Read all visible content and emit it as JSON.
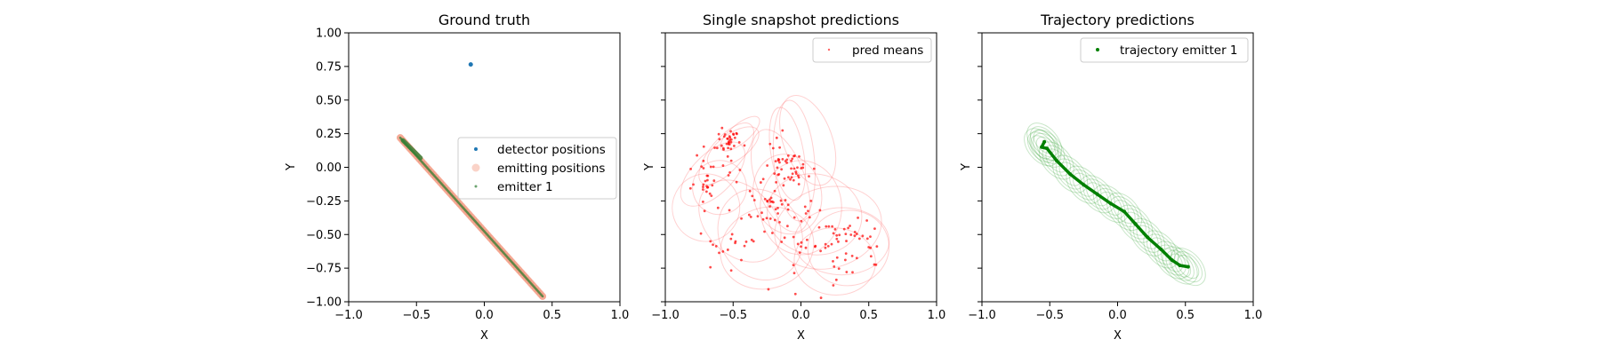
{
  "figure": {
    "background": "#ffffff"
  },
  "chart_data": [
    {
      "type": "scatter",
      "title": "Ground truth",
      "xlabel": "X",
      "ylabel": "Y",
      "xlim": [
        -1.0,
        1.0
      ],
      "ylim": [
        -1.0,
        1.0
      ],
      "xticks": [
        "−1.0",
        "−0.5",
        "0.0",
        "0.5",
        "1.0"
      ],
      "yticks": [
        "1.00",
        "0.75",
        "0.50",
        "0.25",
        "0.00",
        "−0.25",
        "−0.50",
        "−0.75",
        "−1.00"
      ],
      "show_y_tick_labels": true,
      "grid": false,
      "legend_position": "center-right",
      "series": [
        {
          "name": "detector positions",
          "kind": "points",
          "color": "#1f77b4",
          "points": [
            [
              -0.1,
              0.765
            ]
          ]
        },
        {
          "name": "emitting positions",
          "kind": "thick-path",
          "color": "#f08060",
          "opacity": 0.5,
          "path": [
            [
              -0.62,
              0.22
            ],
            [
              0.43,
              -0.96
            ]
          ]
        },
        {
          "name": "emitter 1",
          "kind": "thin-path",
          "color": "#2e7d32",
          "path": [
            [
              -0.62,
              0.22
            ],
            [
              0.43,
              -0.96
            ]
          ]
        }
      ]
    },
    {
      "type": "scatter",
      "title": "Single snapshot predictions",
      "xlabel": "X",
      "ylabel": "Y",
      "xlim": [
        -1.0,
        1.0
      ],
      "ylim": [
        -1.0,
        1.0
      ],
      "xticks": [
        "−1.0",
        "−0.5",
        "0.0",
        "0.5",
        "1.0"
      ],
      "show_y_tick_labels": false,
      "grid": false,
      "legend_position": "top-right",
      "series": [
        {
          "name": "pred means",
          "kind": "points",
          "color": "#ff0000",
          "clusters": [
            {
              "center": [
                -0.53,
                0.2
              ],
              "spread": [
                0.04,
                0.06
              ],
              "count": 35
            },
            {
              "center": [
                -0.7,
                -0.1
              ],
              "spread": [
                0.07,
                0.12
              ],
              "count": 30
            },
            {
              "center": [
                -0.1,
                0.05
              ],
              "spread": [
                0.1,
                0.1
              ],
              "count": 45
            },
            {
              "center": [
                -0.15,
                -0.35
              ],
              "spread": [
                0.15,
                0.18
              ],
              "count": 60
            },
            {
              "center": [
                0.3,
                -0.6
              ],
              "spread": [
                0.18,
                0.12
              ],
              "count": 55
            },
            {
              "center": [
                -0.5,
                -0.55
              ],
              "spread": [
                0.1,
                0.12
              ],
              "count": 18
            }
          ]
        },
        {
          "kind": "ellipses",
          "color": "#ff6666",
          "ellipses": [
            [
              -0.45,
              0.25,
              0.18,
              0.07,
              40
            ],
            [
              -0.5,
              0.15,
              0.22,
              0.1,
              35
            ],
            [
              -0.55,
              0.1,
              0.28,
              0.12,
              50
            ],
            [
              -0.65,
              -0.05,
              0.3,
              0.15,
              45
            ],
            [
              -0.6,
              -0.15,
              0.2,
              0.2,
              60
            ],
            [
              -0.7,
              -0.3,
              0.25,
              0.25,
              70
            ],
            [
              -0.1,
              0.1,
              0.12,
              0.35,
              10
            ],
            [
              -0.05,
              0.05,
              0.15,
              0.45,
              5
            ],
            [
              -0.15,
              -0.1,
              0.18,
              0.4,
              20
            ],
            [
              -0.1,
              -0.2,
              0.25,
              0.3,
              15
            ],
            [
              0.0,
              -0.3,
              0.3,
              0.35,
              0
            ],
            [
              0.1,
              -0.35,
              0.35,
              0.3,
              -10
            ],
            [
              -0.3,
              -0.5,
              0.3,
              0.35,
              30
            ],
            [
              -0.25,
              -0.6,
              0.35,
              0.3,
              20
            ],
            [
              0.3,
              -0.55,
              0.35,
              0.25,
              0
            ],
            [
              0.35,
              -0.6,
              0.3,
              0.28,
              10
            ],
            [
              0.25,
              -0.7,
              0.3,
              0.25,
              -5
            ],
            [
              0.2,
              -0.45,
              0.4,
              0.3,
              15
            ],
            [
              -0.45,
              -0.4,
              0.25,
              0.35,
              45
            ],
            [
              0.05,
              0.2,
              0.18,
              0.35,
              20
            ]
          ]
        }
      ]
    },
    {
      "type": "line",
      "title": "Trajectory predictions",
      "xlabel": "X",
      "ylabel": "Y",
      "xlim": [
        -1.0,
        1.0
      ],
      "ylim": [
        -1.0,
        1.0
      ],
      "xticks": [
        "−1.0",
        "−0.5",
        "0.0",
        "0.5",
        "1.0"
      ],
      "show_y_tick_labels": false,
      "grid": false,
      "legend_position": "top-right",
      "series": [
        {
          "name": "trajectory emitter 1",
          "kind": "track",
          "color": "#008000",
          "path": [
            [
              -0.54,
              0.19
            ],
            [
              -0.56,
              0.15
            ],
            [
              -0.52,
              0.14
            ],
            [
              -0.45,
              0.05
            ],
            [
              -0.35,
              -0.05
            ],
            [
              -0.25,
              -0.13
            ],
            [
              -0.15,
              -0.2
            ],
            [
              -0.05,
              -0.27
            ],
            [
              0.05,
              -0.33
            ],
            [
              0.13,
              -0.42
            ],
            [
              0.22,
              -0.52
            ],
            [
              0.32,
              -0.61
            ],
            [
              0.4,
              -0.69
            ],
            [
              0.46,
              -0.73
            ],
            [
              0.52,
              -0.74
            ]
          ]
        },
        {
          "kind": "ellipse-track",
          "color": "#2ca02c"
        }
      ]
    }
  ]
}
